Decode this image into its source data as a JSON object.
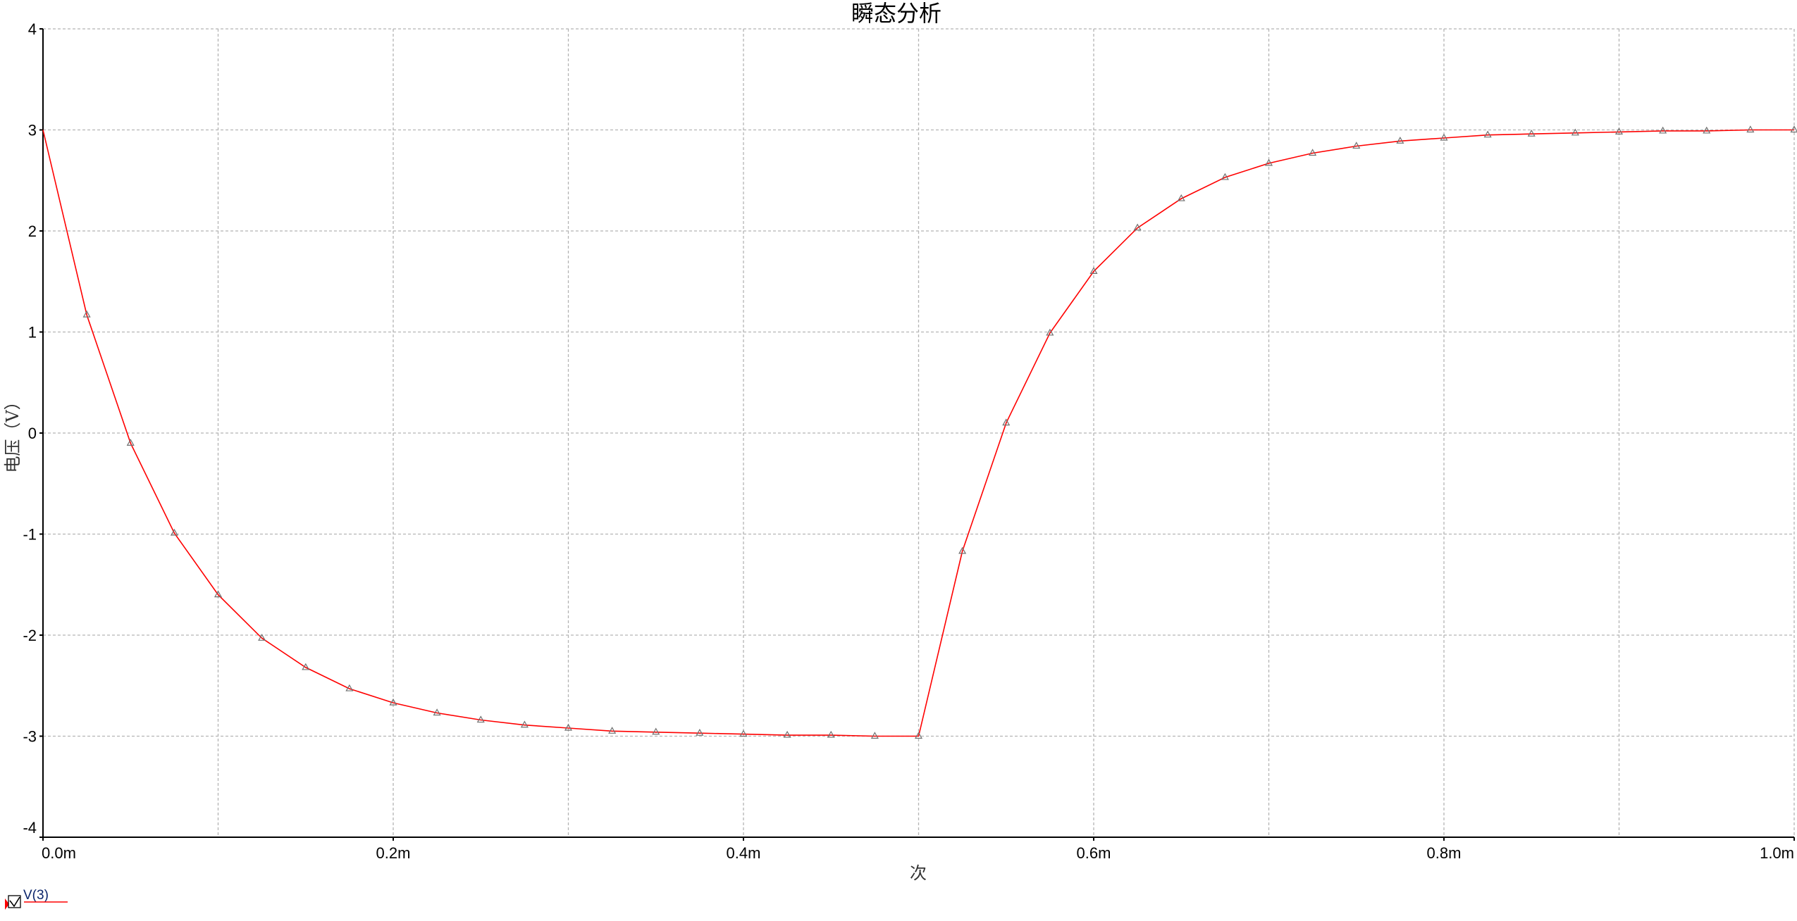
{
  "chart_data": {
    "type": "line",
    "title": "瞬态分析",
    "xlabel": "次",
    "ylabel": "电压（V）",
    "xlim": [
      0,
      1.0
    ],
    "ylim": [
      -4,
      4
    ],
    "x_unit": "m",
    "x_ticks": [
      0,
      0.2,
      0.4,
      0.6,
      0.8,
      1.0
    ],
    "x_tick_labels": [
      "0.0m",
      "0.2m",
      "0.4m",
      "0.6m",
      "0.8m",
      "1.0m"
    ],
    "x_grid_step": 0.1,
    "y_ticks": [
      4,
      3,
      2,
      1,
      0,
      -1,
      -2,
      -3,
      -4
    ],
    "y_tick_labels": [
      "4",
      "3",
      "2",
      "1",
      "0",
      "-1",
      "-2",
      "-3",
      "-4"
    ],
    "grid": true,
    "grid_style": "dashed",
    "legend_position": "bottom-left",
    "series": [
      {
        "name": "V(3)",
        "color": "#ff0000",
        "marker": "triangle",
        "x": [
          0,
          0.025,
          0.05,
          0.075,
          0.1,
          0.125,
          0.15,
          0.175,
          0.2,
          0.225,
          0.25,
          0.275,
          0.3,
          0.325,
          0.35,
          0.375,
          0.4,
          0.425,
          0.45,
          0.475,
          0.5,
          0.525,
          0.55,
          0.575,
          0.6,
          0.625,
          0.65,
          0.675,
          0.7,
          0.725,
          0.75,
          0.775,
          0.8,
          0.825,
          0.85,
          0.875,
          0.9,
          0.925,
          0.95,
          0.975,
          1.0
        ],
        "y": [
          3.0,
          1.17,
          -0.1,
          -0.99,
          -1.6,
          -2.03,
          -2.32,
          -2.53,
          -2.67,
          -2.77,
          -2.84,
          -2.89,
          -2.92,
          -2.95,
          -2.96,
          -2.97,
          -2.98,
          -2.99,
          -2.99,
          -3.0,
          -3.0,
          -1.17,
          0.1,
          0.99,
          1.6,
          2.03,
          2.32,
          2.53,
          2.67,
          2.77,
          2.84,
          2.89,
          2.92,
          2.95,
          2.96,
          2.97,
          2.98,
          2.99,
          2.99,
          3.0,
          3.0
        ]
      }
    ]
  },
  "legend": {
    "checked": true,
    "label": "V(3)"
  }
}
